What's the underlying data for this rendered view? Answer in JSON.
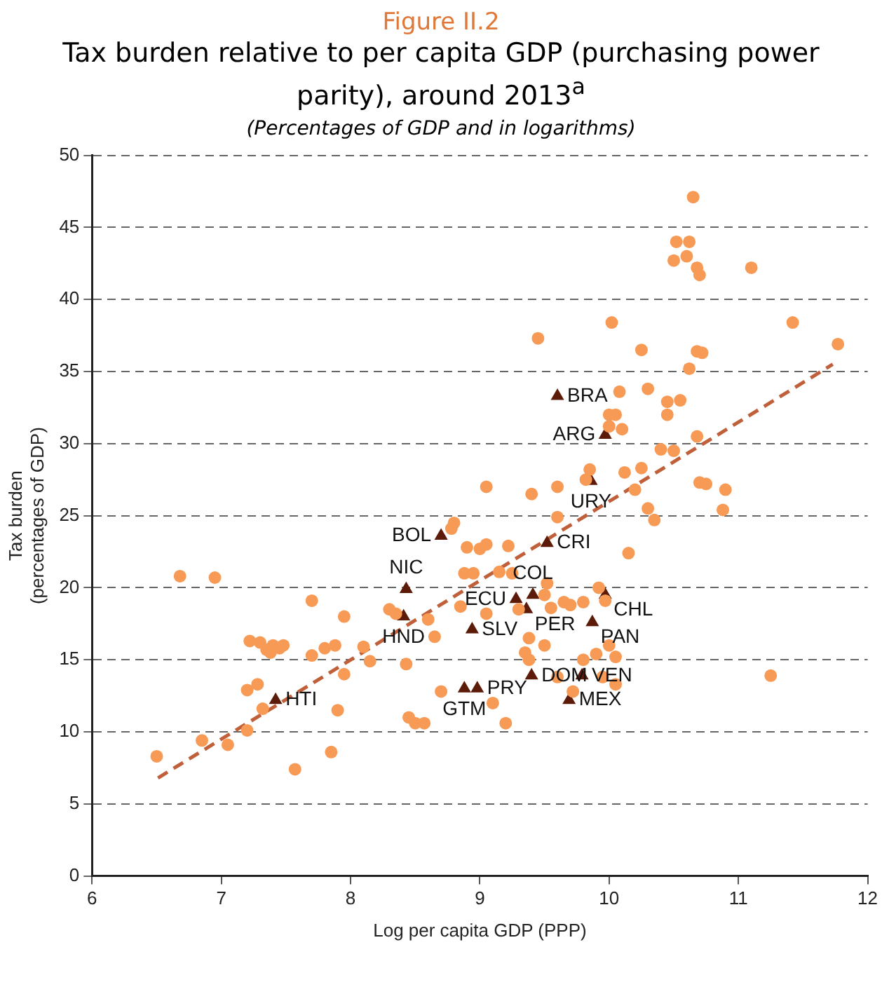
{
  "chart_data": {
    "type": "scatter",
    "title": "Tax burden relative to per capita GDP (purchasing power parity), around 2013$^{a}$",
    "subtitle": "(Percentages of GDP and in logarithms)",
    "annotations": [
      "Figure II.2"
    ],
    "xlabel": "Log per capita GDP (PPP)",
    "ylabel": "Tax burden\n(percentages of GDP)",
    "xlim": [
      6,
      12
    ],
    "xticks": [
      6,
      7,
      8,
      9,
      10,
      11,
      12
    ],
    "ylim": [
      0,
      50
    ],
    "yticks": [
      0,
      5,
      10,
      15,
      20,
      25,
      30,
      35,
      40,
      45,
      50
    ],
    "grid": "y",
    "legend": false,
    "series": [
      {
        "type": "scatter",
        "marker": "circle",
        "color": "#f79a55",
        "x": [
          6.5,
          6.68,
          6.95,
          6.85,
          7.05,
          7.2,
          7.2,
          7.22,
          7.28,
          7.3,
          7.32,
          7.35,
          7.38,
          7.4,
          7.45,
          7.48,
          7.57,
          7.7,
          7.7,
          7.8,
          7.85,
          7.88,
          7.9,
          7.95,
          7.95,
          8.1,
          8.15,
          8.3,
          8.35,
          8.43,
          8.45,
          8.5,
          8.57,
          8.6,
          8.65,
          8.7,
          8.78,
          8.8,
          8.85,
          8.88,
          8.9,
          8.95,
          9.0,
          9.05,
          9.05,
          9.05,
          9.1,
          9.15,
          9.2,
          9.22,
          9.25,
          9.3,
          9.35,
          9.38,
          9.38,
          9.4,
          9.45,
          9.5,
          9.5,
          9.52,
          9.55,
          9.6,
          9.6,
          9.6,
          9.65,
          9.7,
          9.72,
          9.8,
          9.8,
          9.82,
          9.85,
          9.9,
          9.92,
          9.95,
          9.97,
          10.0,
          10.0,
          10.0,
          10.02,
          10.05,
          10.05,
          10.05,
          10.08,
          10.1,
          10.12,
          10.15,
          10.2,
          10.25,
          10.25,
          10.3,
          10.3,
          10.35,
          10.4,
          10.45,
          10.45,
          10.5,
          10.5,
          10.52,
          10.55,
          10.6,
          10.62,
          10.62,
          10.65,
          10.68,
          10.7,
          10.68,
          10.72,
          10.68,
          10.7,
          10.75,
          10.88,
          10.9,
          11.1,
          11.25,
          11.42,
          11.77
        ],
        "values": [
          8.3,
          20.8,
          20.7,
          9.4,
          9.1,
          10.1,
          12.9,
          16.3,
          13.3,
          16.2,
          11.6,
          15.7,
          15.5,
          16,
          15.8,
          16,
          7.4,
          19.1,
          15.3,
          15.8,
          8.6,
          16,
          11.5,
          14,
          18,
          15.9,
          14.9,
          18.5,
          18.2,
          14.7,
          11,
          10.6,
          10.6,
          17.8,
          16.6,
          12.8,
          24.1,
          24.5,
          18.7,
          21,
          22.8,
          21,
          22.7,
          23,
          18.2,
          27,
          12,
          21.1,
          10.6,
          22.9,
          21,
          18.5,
          15.5,
          16.5,
          15,
          26.5,
          37.3,
          19.5,
          16,
          20.3,
          18.6,
          24.9,
          27,
          13.8,
          19,
          18.8,
          12.8,
          19,
          15,
          27.5,
          28.2,
          15.4,
          20,
          13.8,
          19.1,
          16,
          31.2,
          32,
          38.4,
          15.2,
          13.3,
          32,
          33.6,
          31,
          28,
          22.4,
          26.8,
          36.5,
          28.3,
          33.8,
          25.5,
          24.7,
          29.6,
          32.9,
          32,
          29.5,
          42.7,
          44,
          33,
          43,
          44,
          35.2,
          47.1,
          42.2,
          41.7,
          36.4,
          36.3,
          30.5,
          27.3,
          27.2,
          25.4,
          26.8,
          42.2,
          13.9,
          38.4,
          36.9
        ]
      },
      {
        "type": "scatter",
        "marker": "triangle",
        "color": "#5c1a08",
        "x": [
          7.42,
          8.43,
          8.41,
          8.7,
          8.94,
          8.88,
          8.98,
          9.28,
          9.41,
          9.36,
          9.52,
          9.6,
          9.97,
          9.86,
          9.97,
          9.87,
          9.4,
          9.79,
          9.69
        ],
        "values": [
          12.2,
          19.9,
          18,
          23.6,
          17.1,
          13,
          13,
          19.2,
          19.5,
          18.5,
          23.1,
          33.3,
          30.6,
          27.4,
          19.5,
          17.6,
          13.9,
          13.9,
          12.2
        ],
        "value_labels": [
          "HTI",
          "NIC",
          "HND",
          "BOL",
          "SLV",
          "GTM",
          "PRY",
          "ECU",
          "COL",
          "PER",
          "CRI",
          "BRA",
          "ARG",
          "URY",
          "CHL",
          "PAN",
          "DOM",
          "VEN",
          "MEX"
        ]
      },
      {
        "type": "line",
        "marker": "none",
        "line_style": "dashed",
        "color": "#c0603a",
        "x": [
          6.51,
          11.73
        ],
        "values": [
          6.8,
          35.5
        ]
      }
    ]
  }
}
